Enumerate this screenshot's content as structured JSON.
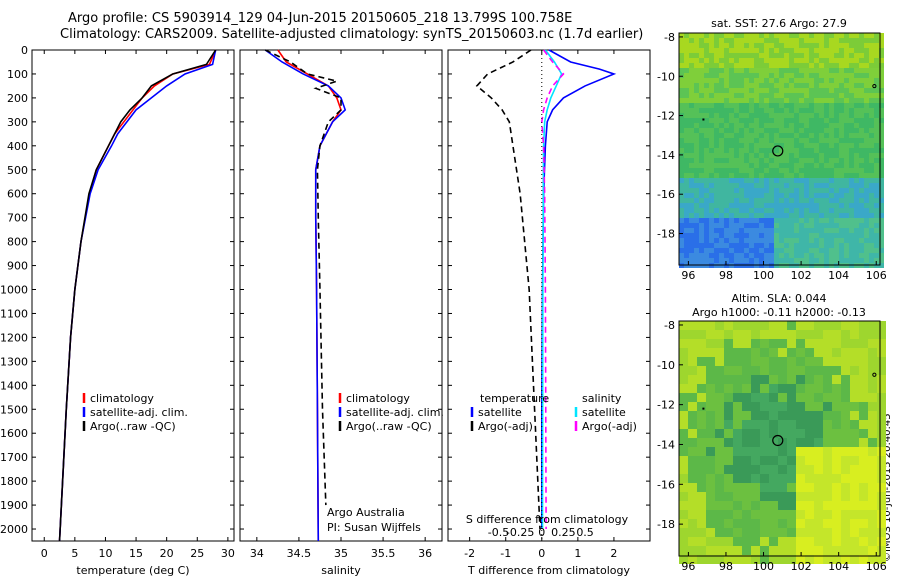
{
  "title": {
    "line1": "Argo profile: CS 5903914_129 04-Jun-2015 20150605_218 13.799S 100.758E",
    "line2": "Climatology: CARS2009. Satellite-adjusted climatology: synTS_20150603.nc (1.7d earlier)"
  },
  "colors": {
    "climatology": "#ff0000",
    "satellite": "#0000ff",
    "argo": "#000000",
    "cyan": "#00e5ff",
    "magenta": "#ff00ff"
  },
  "credit": "©IMOS 10-Jun-2015 20:40:45",
  "chart_data": [
    {
      "type": "line",
      "id": "temperature",
      "xlabel": "temperature (deg C)",
      "ylabel": "",
      "xlim": [
        -2,
        31
      ],
      "ylim": [
        2050,
        0
      ],
      "xticks": [
        0,
        5,
        10,
        15,
        20,
        25,
        30
      ],
      "yticks": [
        0,
        100,
        200,
        300,
        400,
        500,
        600,
        700,
        800,
        900,
        1000,
        1100,
        1200,
        1300,
        1400,
        1500,
        1600,
        1700,
        1800,
        1900,
        2000
      ],
      "legend": {
        "position": "lower-center",
        "entries": [
          "climatology",
          "satellite-adj. clim.",
          "Argo(..raw -QC)"
        ]
      },
      "series": [
        {
          "name": "climatology",
          "color": "#ff0000",
          "depth": [
            0,
            60,
            100,
            150,
            200,
            250,
            300,
            350,
            400,
            500,
            600,
            800,
            1000,
            1200,
            1500,
            1800,
            2050
          ],
          "values": [
            28,
            27,
            21,
            18,
            16,
            14.5,
            13,
            11.5,
            10.5,
            8.5,
            7.4,
            6,
            5,
            4.3,
            3.6,
            3,
            2.5
          ]
        },
        {
          "name": "satellite-adj. clim.",
          "color": "#0000ff",
          "depth": [
            0,
            60,
            100,
            150,
            200,
            250,
            300,
            350,
            400,
            500,
            600,
            800,
            1000,
            1200,
            1500,
            1800,
            2050
          ],
          "values": [
            28,
            27.5,
            23,
            20,
            17.5,
            15,
            13.5,
            12,
            11,
            8.8,
            7.5,
            6,
            5,
            4.3,
            3.6,
            3,
            2.5
          ]
        },
        {
          "name": "Argo(..raw -QC)",
          "color": "#000000",
          "depth": [
            0,
            60,
            100,
            150,
            200,
            250,
            300,
            350,
            400,
            500,
            600,
            800,
            1000,
            1200,
            1500,
            1800,
            2050
          ],
          "values": [
            28,
            26.5,
            21,
            17.5,
            16,
            14,
            12.5,
            11.5,
            10.5,
            8.5,
            7.3,
            6,
            5,
            4.3,
            3.6,
            3,
            2.5
          ]
        }
      ]
    },
    {
      "type": "line",
      "id": "salinity",
      "xlabel": "salinity",
      "ylabel": "",
      "xlim": [
        33.8,
        36.2
      ],
      "ylim": [
        2050,
        0
      ],
      "xticks": [
        34,
        34.5,
        35,
        35.5,
        36
      ],
      "legend": {
        "position": "lower-right",
        "entries": [
          "climatology",
          "satellite-adj. clim.",
          "Argo(..raw -QC)"
        ]
      },
      "annotation": [
        "Argo Australia",
        "PI: Susan Wijffels"
      ],
      "series": [
        {
          "name": "climatology",
          "color": "#ff0000",
          "depth": [
            0,
            50,
            100,
            150,
            200,
            250,
            300,
            400,
            500,
            700,
            1000,
            1500,
            2050
          ],
          "values": [
            34.25,
            34.35,
            34.6,
            34.85,
            34.95,
            35.0,
            34.9,
            34.75,
            34.7,
            34.7,
            34.71,
            34.72,
            34.73
          ]
        },
        {
          "name": "satellite-adj. clim.",
          "color": "#0000ff",
          "depth": [
            0,
            50,
            100,
            150,
            200,
            250,
            300,
            400,
            500,
            700,
            1000,
            1500,
            2050
          ],
          "values": [
            34.1,
            34.3,
            34.55,
            34.85,
            35.0,
            35.05,
            34.9,
            34.75,
            34.7,
            34.7,
            34.71,
            34.72,
            34.73
          ]
        },
        {
          "name": "Argo(..raw -QC)",
          "color": "#000000",
          "depth": [
            0,
            50,
            100,
            130,
            160,
            200,
            250,
            300,
            400,
            500,
            700,
            1000,
            1500,
            1900
          ],
          "values": [
            34.1,
            34.4,
            34.6,
            34.95,
            34.7,
            35.0,
            35.0,
            34.85,
            34.75,
            34.72,
            34.73,
            34.75,
            34.78,
            34.82
          ]
        }
      ]
    },
    {
      "type": "line",
      "id": "differences",
      "xlabel": "T difference from climatology",
      "xlabel2": "S difference from climatology",
      "xlim": [
        -2.6,
        3.0
      ],
      "ylim": [
        2050,
        0
      ],
      "xticks": [
        -2,
        -1,
        0,
        1,
        2
      ],
      "xticks2": [
        -0.5,
        -0.25,
        0,
        0.25,
        0.5
      ],
      "xticks2_labels": [
        "-0.5",
        "-0.25",
        "0",
        "0.25",
        "0.5"
      ],
      "legend": {
        "position": "lower-center",
        "headers": [
          "temperature",
          "salinity"
        ],
        "entries": [
          "satellite",
          "Argo(-adj)",
          "satellite",
          "Argo(-adj)"
        ]
      },
      "series": [
        {
          "name": "temperature satellite",
          "color": "#0000ff",
          "depth": [
            0,
            50,
            80,
            100,
            150,
            200,
            250,
            300,
            400,
            600,
            1000,
            1500,
            2000
          ],
          "values": [
            0.2,
            0.8,
            1.6,
            2.0,
            1.2,
            0.6,
            0.3,
            0.15,
            0.1,
            0.05,
            0.02,
            0.0,
            0.0
          ]
        },
        {
          "name": "temperature Argo(-adj)",
          "color": "#000000",
          "depth": [
            0,
            50,
            100,
            150,
            200,
            250,
            300,
            400,
            600,
            1000,
            1500,
            2000
          ],
          "values": [
            -0.3,
            -0.8,
            -1.5,
            -1.8,
            -1.4,
            -1.1,
            -0.9,
            -0.8,
            -0.6,
            -0.35,
            -0.2,
            -0.05
          ]
        },
        {
          "name": "salinity satellite",
          "color": "#00e5ff",
          "depth": [
            0,
            50,
            100,
            150,
            200,
            250,
            300,
            400,
            600,
            1000,
            2000
          ],
          "values": [
            0.1,
            0.35,
            0.55,
            0.4,
            0.25,
            0.15,
            0.08,
            0.05,
            0.04,
            0.03,
            0.02
          ]
        },
        {
          "name": "salinity Argo(-adj)",
          "color": "#ff00ff",
          "depth": [
            0,
            50,
            100,
            150,
            200,
            250,
            300,
            400,
            600,
            1000,
            2000
          ],
          "values": [
            0.05,
            0.3,
            0.6,
            0.3,
            0.15,
            0.05,
            0.0,
            0.05,
            0.08,
            0.1,
            0.12
          ]
        }
      ]
    },
    {
      "type": "heatmap",
      "id": "sst-map",
      "title": "sat. SST: 27.6 Argo: 27.9",
      "xlim": [
        95.5,
        106.2
      ],
      "ylim": [
        -19.6,
        -7.8
      ],
      "xticks": [
        96,
        98,
        100,
        102,
        104,
        106
      ],
      "yticks": [
        -8,
        -10,
        -12,
        -14,
        -16,
        -18
      ],
      "marker": {
        "lon": 100.758,
        "lat": -13.799
      }
    },
    {
      "type": "heatmap",
      "id": "sla-map",
      "title": "Altim. SLA: 0.044",
      "subtitle": "Argo h1000: -0.11 h2000: -0.13",
      "xlim": [
        95.5,
        106.2
      ],
      "ylim": [
        -19.6,
        -7.8
      ],
      "xticks": [
        96,
        98,
        100,
        102,
        104,
        106
      ],
      "yticks": [
        -8,
        -10,
        -12,
        -14,
        -16,
        -18
      ],
      "marker": {
        "lon": 100.758,
        "lat": -13.799
      }
    }
  ]
}
